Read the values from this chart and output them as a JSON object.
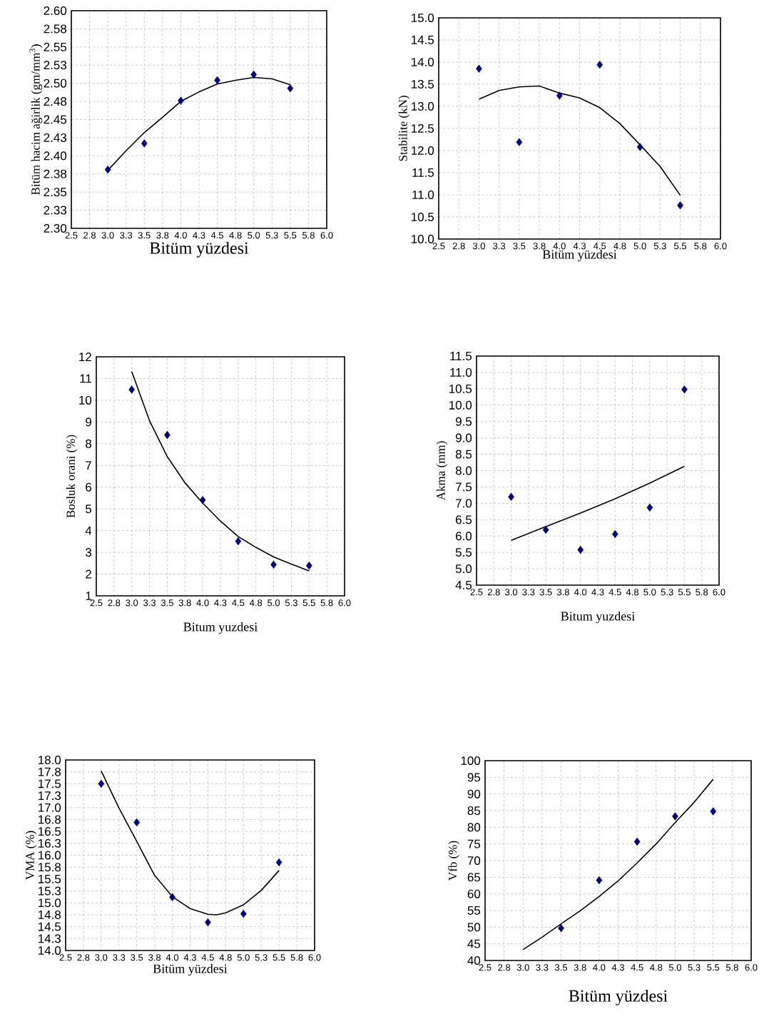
{
  "chart_data": [
    {
      "type": "scatter",
      "xlabel": "Bitüm yüzdesi",
      "ylabel": "Bitüm hacim ağirlik (gm/mm$^{3}$)",
      "grid": true,
      "xlim": [
        2.5,
        6.0
      ],
      "xticks": [
        2.5,
        {
          "value": 2.75,
          "label": "2.8"
        },
        {
          "value": 3.0,
          "label": "3.0"
        },
        {
          "value": 3.25,
          "label": "3.3"
        },
        3.5,
        {
          "value": 3.75,
          "label": "3.8"
        },
        {
          "value": 4.0,
          "label": "4.0"
        },
        {
          "value": 4.25,
          "label": "4.3"
        },
        4.5,
        {
          "value": 4.75,
          "label": "4.8"
        },
        {
          "value": 5.0,
          "label": "5.0"
        },
        {
          "value": 5.25,
          "label": "5.3"
        },
        5.5,
        {
          "value": 5.75,
          "label": "5.8"
        },
        {
          "value": 6.0,
          "label": "6.0"
        }
      ],
      "ylim": [
        2.3,
        2.6
      ],
      "yticks": [
        {
          "value": 2.3,
          "label": "2.30"
        },
        {
          "value": 2.325,
          "label": "2.33"
        },
        2.35,
        {
          "value": 2.375,
          "label": "2.38"
        },
        {
          "value": 2.4,
          "label": "2.40"
        },
        {
          "value": 2.425,
          "label": "2.43"
        },
        2.45,
        {
          "value": 2.475,
          "label": "2.48"
        },
        {
          "value": 2.5,
          "label": "2.50"
        },
        {
          "value": 2.525,
          "label": "2.53"
        },
        2.55,
        {
          "value": 2.575,
          "label": "2.58"
        },
        {
          "value": 2.6,
          "label": "2.60"
        }
      ],
      "series": [
        {
          "marker": "diamond",
          "color": "#000080",
          "x": [
            3.0,
            3.5,
            4.0,
            4.5,
            5.0,
            5.5
          ],
          "values": [
            2.381,
            2.417,
            2.476,
            2.504,
            2.512,
            2.493
          ]
        },
        {
          "type": "line",
          "color": "#000000",
          "x": [
            3.0,
            3.25,
            3.5,
            3.75,
            4.0,
            4.25,
            4.5,
            4.75,
            5.0,
            5.25,
            5.5
          ],
          "values": [
            2.38,
            2.407,
            2.432,
            2.453,
            2.475,
            2.488,
            2.499,
            2.504,
            2.508,
            2.506,
            2.498
          ]
        }
      ]
    },
    {
      "type": "scatter",
      "xlabel": "Bitüm yüzdesi",
      "ylabel": "Stabilite (kN)",
      "grid": true,
      "xlim": [
        2.5,
        6.0
      ],
      "xticks": [
        2.5,
        {
          "value": 2.75,
          "label": "2.8"
        },
        {
          "value": 3.0,
          "label": "3.0"
        },
        {
          "value": 3.25,
          "label": "3.3"
        },
        3.5,
        {
          "value": 3.75,
          "label": "3.8"
        },
        {
          "value": 4.0,
          "label": "4.0"
        },
        {
          "value": 4.25,
          "label": "4.3"
        },
        4.5,
        {
          "value": 4.75,
          "label": "4.8"
        },
        {
          "value": 5.0,
          "label": "5.0"
        },
        {
          "value": 5.25,
          "label": "5.3"
        },
        5.5,
        {
          "value": 5.75,
          "label": "5.8"
        },
        {
          "value": 6.0,
          "label": "6.0"
        }
      ],
      "ylim": [
        10.0,
        15.0
      ],
      "yticks": [
        {
          "value": 10,
          "label": "10.0"
        },
        10.5,
        {
          "value": 11,
          "label": "11.0"
        },
        11.5,
        {
          "value": 12,
          "label": "12.0"
        },
        12.5,
        {
          "value": 13,
          "label": "13.0"
        },
        13.5,
        {
          "value": 14,
          "label": "14.0"
        },
        14.5,
        {
          "value": 15,
          "label": "15.0"
        }
      ],
      "series": [
        {
          "marker": "diamond",
          "color": "#000080",
          "x": [
            3.0,
            3.5,
            4.0,
            4.5,
            5.0,
            5.5
          ],
          "values": [
            13.85,
            12.19,
            13.24,
            13.94,
            12.08,
            10.76
          ]
        },
        {
          "type": "line",
          "color": "#000000",
          "x": [
            3.0,
            3.25,
            3.5,
            3.75,
            4.0,
            4.25,
            4.5,
            4.75,
            5.0,
            5.25,
            5.5
          ],
          "values": [
            13.16,
            13.36,
            13.44,
            13.46,
            13.3,
            13.19,
            12.97,
            12.61,
            12.13,
            11.64,
            10.99
          ]
        }
      ]
    },
    {
      "type": "scatter",
      "xlabel": "Bitum yuzdesi",
      "ylabel": "Bosluk orani (%)",
      "grid": true,
      "xlim": [
        2.5,
        6.0
      ],
      "xticks": [
        2.5,
        {
          "value": 2.75,
          "label": "2.8"
        },
        {
          "value": 3.0,
          "label": "3.0"
        },
        {
          "value": 3.25,
          "label": "3.3"
        },
        3.5,
        {
          "value": 3.75,
          "label": "3.8"
        },
        {
          "value": 4.0,
          "label": "4.0"
        },
        {
          "value": 4.25,
          "label": "4.3"
        },
        4.5,
        {
          "value": 4.75,
          "label": "4.8"
        },
        {
          "value": 5.0,
          "label": "5.0"
        },
        {
          "value": 5.25,
          "label": "5.3"
        },
        5.5,
        {
          "value": 5.75,
          "label": "5.8"
        },
        {
          "value": 6.0,
          "label": "6.0"
        }
      ],
      "ylim": [
        1,
        12
      ],
      "yticks": [
        1,
        2,
        3,
        4,
        5,
        6,
        7,
        8,
        9,
        10,
        11,
        12
      ],
      "series": [
        {
          "marker": "diamond",
          "color": "#000080",
          "x": [
            3.0,
            3.5,
            4.0,
            4.5,
            5.0,
            5.5
          ],
          "values": [
            10.49,
            8.4,
            5.41,
            3.51,
            2.44,
            2.39
          ]
        },
        {
          "type": "line",
          "color": "#000000",
          "x": [
            3.0,
            3.25,
            3.5,
            3.75,
            4.0,
            4.25,
            4.5,
            4.75,
            5.0,
            5.25,
            5.5
          ],
          "values": [
            11.32,
            9.06,
            7.41,
            6.2,
            5.27,
            4.44,
            3.73,
            3.23,
            2.79,
            2.46,
            2.15
          ]
        }
      ]
    },
    {
      "type": "scatter",
      "xlabel": "Bitum yuzdesi",
      "ylabel": "Akma (mm)",
      "grid": true,
      "xlim": [
        2.5,
        6.0
      ],
      "xticks": [
        2.5,
        {
          "value": 2.75,
          "label": "2.8"
        },
        {
          "value": 3.0,
          "label": "3.0"
        },
        {
          "value": 3.25,
          "label": "3.3"
        },
        3.5,
        {
          "value": 3.75,
          "label": "3.8"
        },
        {
          "value": 4.0,
          "label": "4.0"
        },
        {
          "value": 4.25,
          "label": "4.3"
        },
        4.5,
        {
          "value": 4.75,
          "label": "4.8"
        },
        {
          "value": 5.0,
          "label": "5.0"
        },
        {
          "value": 5.25,
          "label": "5.3"
        },
        5.5,
        {
          "value": 5.75,
          "label": "5.8"
        },
        {
          "value": 6.0,
          "label": "6.0"
        }
      ],
      "ylim": [
        4.5,
        11.5
      ],
      "yticks": [
        4.5,
        {
          "value": 5,
          "label": "5.0"
        },
        5.5,
        {
          "value": 6,
          "label": "6.0"
        },
        6.5,
        {
          "value": 7,
          "label": "7.0"
        },
        7.5,
        {
          "value": 8,
          "label": "8.0"
        },
        8.5,
        {
          "value": 9,
          "label": "9.0"
        },
        9.5,
        {
          "value": 10,
          "label": "10.0"
        },
        10.5,
        {
          "value": 11,
          "label": "11.0"
        },
        11.5
      ],
      "series": [
        {
          "marker": "diamond",
          "color": "#000080",
          "x": [
            3.0,
            3.5,
            4.0,
            4.5,
            5.0,
            5.5
          ],
          "values": [
            7.2,
            6.19,
            5.58,
            6.06,
            6.87,
            10.48
          ]
        },
        {
          "type": "line",
          "color": "#000000",
          "x": [
            3.0,
            3.5,
            4.0,
            4.5,
            5.0,
            5.5
          ],
          "values": [
            5.87,
            6.29,
            6.7,
            7.14,
            7.62,
            8.13
          ]
        }
      ]
    },
    {
      "type": "scatter",
      "xlabel": "Bitüm yüzdesi",
      "ylabel": "VMA (%)",
      "grid": true,
      "xlim": [
        2.5,
        6.0
      ],
      "xticks": [
        2.5,
        {
          "value": 2.75,
          "label": "2.8"
        },
        {
          "value": 3.0,
          "label": "3.0"
        },
        {
          "value": 3.25,
          "label": "3.3"
        },
        3.5,
        {
          "value": 3.75,
          "label": "3.8"
        },
        {
          "value": 4.0,
          "label": "4.0"
        },
        {
          "value": 4.25,
          "label": "4.3"
        },
        4.5,
        {
          "value": 4.75,
          "label": "4.8"
        },
        {
          "value": 5.0,
          "label": "5.0"
        },
        {
          "value": 5.25,
          "label": "5.3"
        },
        5.5,
        {
          "value": 5.75,
          "label": "5.8"
        },
        {
          "value": 6.0,
          "label": "6.0"
        }
      ],
      "ylim": [
        14.0,
        18.0
      ],
      "yticks": [
        {
          "value": 14,
          "label": "14.0"
        },
        {
          "value": 14.25,
          "label": "14.3"
        },
        14.5,
        {
          "value": 14.75,
          "label": "14.8"
        },
        {
          "value": 15,
          "label": "15.0"
        },
        {
          "value": 15.25,
          "label": "15.3"
        },
        15.5,
        {
          "value": 15.75,
          "label": "15.8"
        },
        {
          "value": 16,
          "label": "16.0"
        },
        {
          "value": 16.25,
          "label": "16.3"
        },
        16.5,
        {
          "value": 16.75,
          "label": "16.8"
        },
        {
          "value": 17,
          "label": "17.0"
        },
        {
          "value": 17.25,
          "label": "17.3"
        },
        17.5,
        {
          "value": 17.75,
          "label": "17.8"
        },
        {
          "value": 18,
          "label": "18.0"
        }
      ],
      "series": [
        {
          "marker": "diamond",
          "color": "#000080",
          "x": [
            3.0,
            3.5,
            4.0,
            4.5,
            5.0,
            5.5
          ],
          "values": [
            17.5,
            16.69,
            15.12,
            14.59,
            14.77,
            15.85
          ]
        },
        {
          "type": "line",
          "color": "#000000",
          "x": [
            3.0,
            3.25,
            3.5,
            3.75,
            4.0,
            4.25,
            4.5,
            4.625,
            4.75,
            5.0,
            5.25,
            5.5
          ],
          "values": [
            17.77,
            16.99,
            16.29,
            15.58,
            15.13,
            14.88,
            14.76,
            14.75,
            14.79,
            14.96,
            15.26,
            15.68
          ]
        }
      ]
    },
    {
      "type": "scatter",
      "xlabel": "Bitüm yüzdesi",
      "ylabel": "Vfb (%)",
      "grid": true,
      "xlim": [
        2.5,
        6.0
      ],
      "xticks": [
        2.5,
        {
          "value": 2.75,
          "label": "2.8"
        },
        {
          "value": 3.0,
          "label": "3.0"
        },
        {
          "value": 3.25,
          "label": "3.3"
        },
        3.5,
        {
          "value": 3.75,
          "label": "3.8"
        },
        {
          "value": 4.0,
          "label": "4.0"
        },
        {
          "value": 4.25,
          "label": "4.3"
        },
        4.5,
        {
          "value": 4.75,
          "label": "4.8"
        },
        {
          "value": 5.0,
          "label": "5.0"
        },
        {
          "value": 5.25,
          "label": "5.3"
        },
        5.5,
        {
          "value": 5.75,
          "label": "5.8"
        },
        {
          "value": 6.0,
          "label": "6.0"
        }
      ],
      "ylim": [
        40,
        100
      ],
      "yticks": [
        40,
        45,
        50,
        55,
        60,
        65,
        70,
        75,
        80,
        85,
        90,
        95,
        100
      ],
      "series": [
        {
          "marker": "diamond",
          "color": "#000080",
          "x": [
            3.5,
            4.0,
            4.5,
            5.0,
            5.5
          ],
          "values": [
            49.7,
            64.1,
            75.7,
            83.3,
            84.8
          ]
        },
        {
          "type": "line",
          "color": "#000000",
          "x": [
            3.0,
            3.25,
            3.5,
            3.75,
            4.0,
            4.25,
            4.5,
            4.75,
            5.0,
            5.25,
            5.5
          ],
          "values": [
            43.3,
            47.0,
            51.0,
            54.9,
            59.2,
            63.9,
            69.3,
            75.0,
            81.4,
            87.5,
            94.4
          ]
        }
      ]
    }
  ]
}
